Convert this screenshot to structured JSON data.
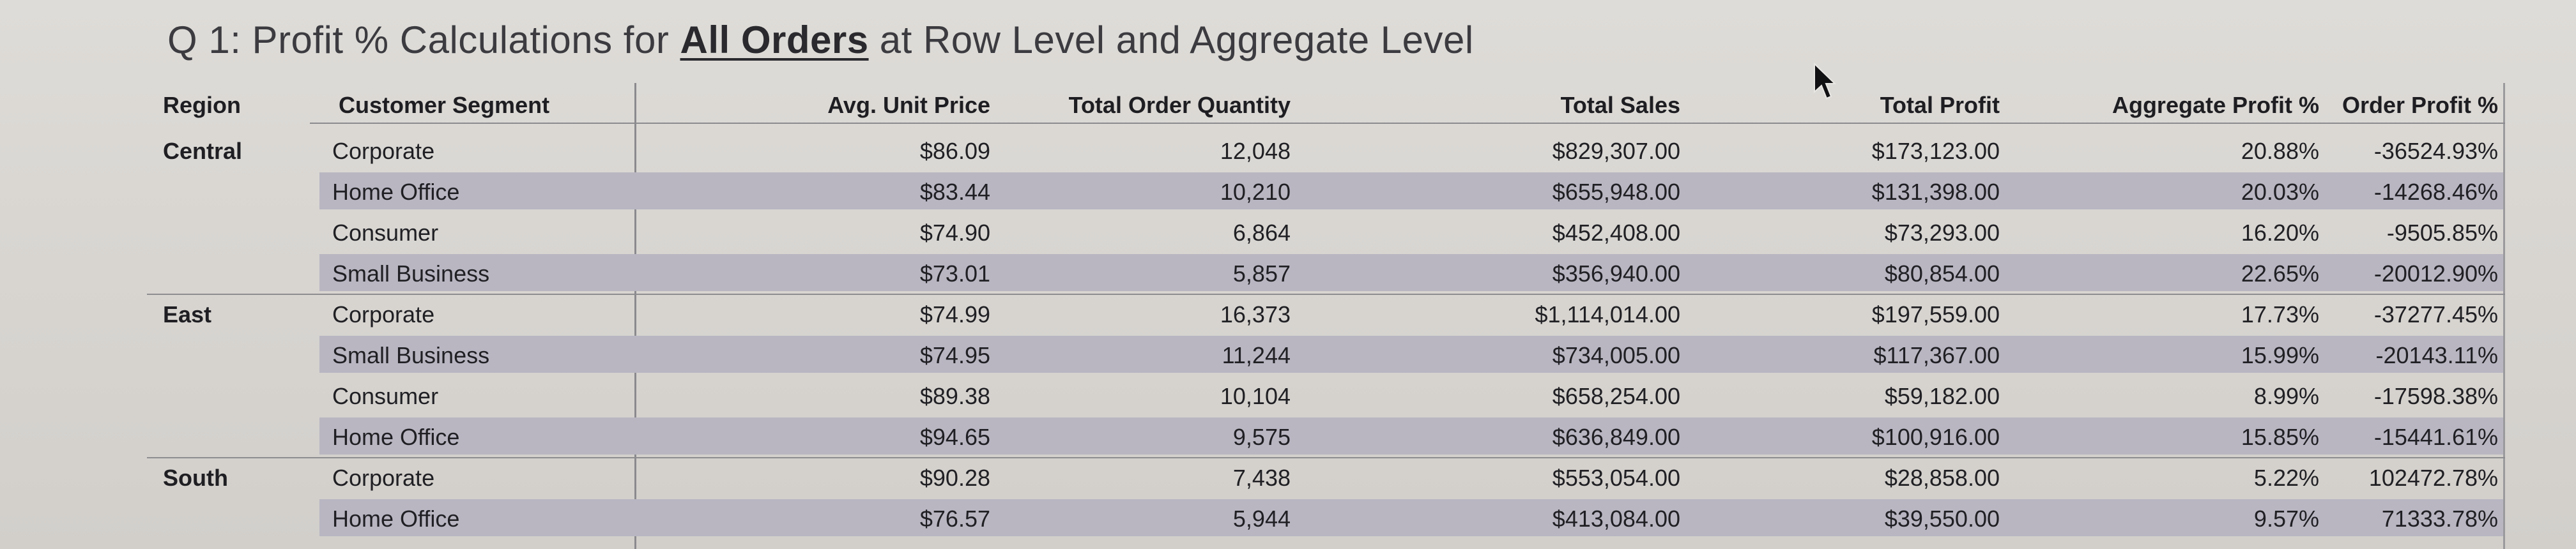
{
  "title": {
    "prefix": "Q 1: Profit % Calculations for ",
    "emphasis": "All Orders",
    "suffix": " at Row Level and Aggregate Level"
  },
  "columns": {
    "region": "Region",
    "segment": "Customer Segment",
    "avg_unit_price": "Avg. Unit Price",
    "total_order_quantity": "Total Order Quantity",
    "total_sales": "Total Sales",
    "total_profit": "Total Profit",
    "aggregate_profit": "Aggregate Profit %",
    "order_profit": "Order Profit %"
  },
  "groups": [
    {
      "region": "Central",
      "rows": [
        {
          "segment": "Corporate",
          "avg_unit_price": "$86.09",
          "total_order_quantity": "12,048",
          "total_sales": "$829,307.00",
          "total_profit": "$173,123.00",
          "aggregate_profit": "20.88%",
          "order_profit": "-36524.93%"
        },
        {
          "segment": "Home Office",
          "avg_unit_price": "$83.44",
          "total_order_quantity": "10,210",
          "total_sales": "$655,948.00",
          "total_profit": "$131,398.00",
          "aggregate_profit": "20.03%",
          "order_profit": "-14268.46%"
        },
        {
          "segment": "Consumer",
          "avg_unit_price": "$74.90",
          "total_order_quantity": "6,864",
          "total_sales": "$452,408.00",
          "total_profit": "$73,293.00",
          "aggregate_profit": "16.20%",
          "order_profit": "-9505.85%"
        },
        {
          "segment": "Small Business",
          "avg_unit_price": "$73.01",
          "total_order_quantity": "5,857",
          "total_sales": "$356,940.00",
          "total_profit": "$80,854.00",
          "aggregate_profit": "22.65%",
          "order_profit": "-20012.90%"
        }
      ]
    },
    {
      "region": "East",
      "rows": [
        {
          "segment": "Corporate",
          "avg_unit_price": "$74.99",
          "total_order_quantity": "16,373",
          "total_sales": "$1,114,014.00",
          "total_profit": "$197,559.00",
          "aggregate_profit": "17.73%",
          "order_profit": "-37277.45%"
        },
        {
          "segment": "Small Business",
          "avg_unit_price": "$74.95",
          "total_order_quantity": "11,244",
          "total_sales": "$734,005.00",
          "total_profit": "$117,367.00",
          "aggregate_profit": "15.99%",
          "order_profit": "-20143.11%"
        },
        {
          "segment": "Consumer",
          "avg_unit_price": "$89.38",
          "total_order_quantity": "10,104",
          "total_sales": "$658,254.00",
          "total_profit": "$59,182.00",
          "aggregate_profit": "8.99%",
          "order_profit": "-17598.38%"
        },
        {
          "segment": "Home Office",
          "avg_unit_price": "$94.65",
          "total_order_quantity": "9,575",
          "total_sales": "$636,849.00",
          "total_profit": "$100,916.00",
          "aggregate_profit": "15.85%",
          "order_profit": "-15441.61%"
        }
      ]
    },
    {
      "region": "South",
      "rows": [
        {
          "segment": "Corporate",
          "avg_unit_price": "$90.28",
          "total_order_quantity": "7,438",
          "total_sales": "$553,054.00",
          "total_profit": "$28,858.00",
          "aggregate_profit": "5.22%",
          "order_profit": "102472.78%"
        },
        {
          "segment": "Home Office",
          "avg_unit_price": "$76.57",
          "total_order_quantity": "5,944",
          "total_sales": "$413,084.00",
          "total_profit": "$39,550.00",
          "aggregate_profit": "9.57%",
          "order_profit": "71333.78%"
        }
      ]
    }
  ],
  "colors": {
    "background": "#d6d3cf",
    "band": "#b9b6c2",
    "text": "#1f1f22",
    "rule": "#8b8a8e"
  },
  "icons": {
    "cursor": "mouse-pointer-icon"
  }
}
